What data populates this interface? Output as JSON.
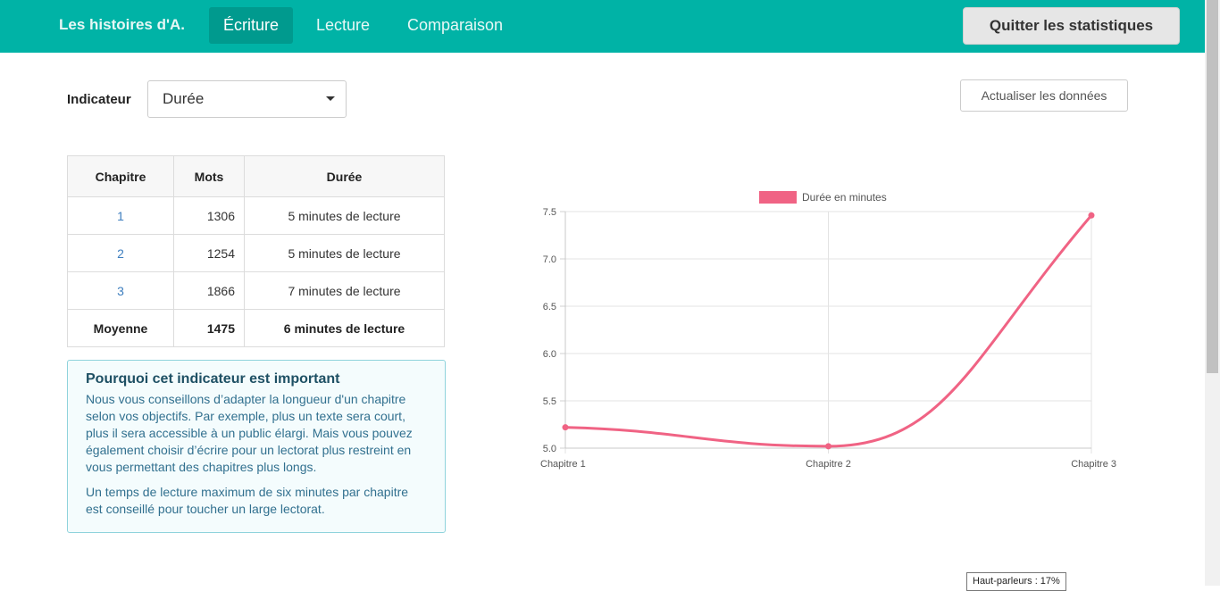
{
  "nav": {
    "brand": "Les histoires d'A.",
    "tabs": [
      {
        "label": "Écriture",
        "active": true
      },
      {
        "label": "Lecture",
        "active": false
      },
      {
        "label": "Comparaison",
        "active": false
      }
    ],
    "quit_label": "Quitter les statistiques"
  },
  "indicator": {
    "label": "Indicateur",
    "selected": "Durée"
  },
  "refresh_label": "Actualiser les données",
  "table": {
    "headers": [
      "Chapitre",
      "Mots",
      "Durée"
    ],
    "rows": [
      {
        "chapter": "1",
        "words": "1306",
        "duration": "5 minutes de lecture"
      },
      {
        "chapter": "2",
        "words": "1254",
        "duration": "5 minutes de lecture"
      },
      {
        "chapter": "3",
        "words": "1866",
        "duration": "7 minutes de lecture"
      }
    ],
    "average": {
      "label": "Moyenne",
      "words": "1475",
      "duration": "6 minutes de lecture"
    }
  },
  "info": {
    "title": "Pourquoi cet indicateur est important",
    "p1": "Nous vous conseillons d’adapter la longueur d'un chapitre selon vos objectifs. Par exemple, plus un texte sera court, plus il sera accessible à un public élargi. Mais vous pouvez également choisir d’écrire pour un lectorat plus restreint en vous permettant des chapitres plus longs.",
    "p2": "Un temps de lecture maximum de six minutes par chapitre est conseillé pour toucher un large lectorat."
  },
  "tooltip": "Haut-parleurs : 17%",
  "colors": {
    "accent": "#00b3a6",
    "series": "#f06384"
  },
  "chart_data": {
    "type": "line",
    "categories": [
      "Chapitre 1",
      "Chapitre 2",
      "Chapitre 3"
    ],
    "series": [
      {
        "name": "Durée en minutes",
        "values": [
          5.22,
          5.02,
          7.46
        ]
      }
    ],
    "ylim": [
      5.0,
      7.5
    ],
    "yticks": [
      "7.5",
      "7.0",
      "6.5",
      "6.0",
      "5.5",
      "5.0"
    ],
    "title": "",
    "xlabel": "",
    "ylabel": "",
    "legend": "top-center",
    "grid": true
  }
}
